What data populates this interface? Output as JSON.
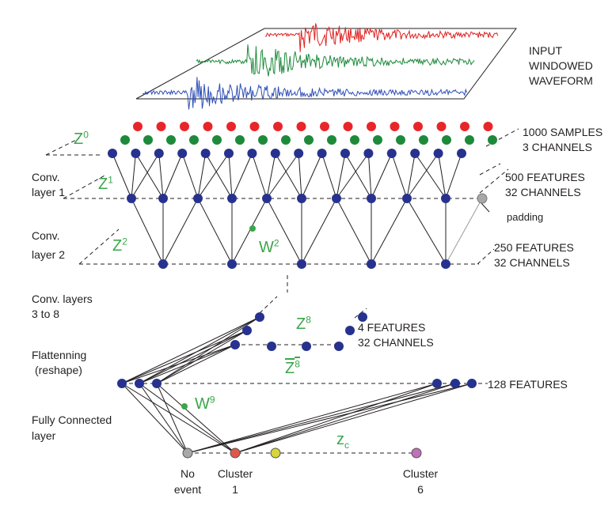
{
  "input": {
    "line1": "INPUT",
    "line2": "WINDOWED",
    "line3": "WAVEFORM",
    "trace_colors": [
      "#e02020",
      "#1d8a3b",
      "#2e4fb8"
    ]
  },
  "samples": {
    "line1": "1000 SAMPLES",
    "line2": "3 CHANNELS"
  },
  "conv1_features": {
    "line1": "500 FEATURES",
    "line2": "32 CHANNELS"
  },
  "conv2_features": {
    "line1": "250 FEATURES",
    "line2": "32 CHANNELS"
  },
  "z8_features": {
    "line1": "4 FEATURES",
    "line2": "32 CHANNELS"
  },
  "flat_features": {
    "text": "128 FEATURES"
  },
  "padding": {
    "text": "padding"
  },
  "layers": {
    "conv1": {
      "line1": "Conv.",
      "line2": "layer 1"
    },
    "conv2": {
      "line1": "Conv.",
      "line2": "layer 2"
    },
    "conv38": {
      "line1": "Conv. layers",
      "line2": "3 to 8"
    },
    "flatten": {
      "line1": "Flattenning",
      "line2": "(reshape)"
    },
    "fc": {
      "line1": "Fully Connected",
      "line2": "layer"
    }
  },
  "symbols": {
    "z0": {
      "base": "Z",
      "sup": "0"
    },
    "z1": {
      "base": "Z",
      "sup": "1"
    },
    "z2": {
      "base": "Z",
      "sup": "2"
    },
    "w2": {
      "base": "W",
      "sup": "2"
    },
    "z8": {
      "base": "Z",
      "sup": "8"
    },
    "z8bar": {
      "base": "Z",
      "sup": "8"
    },
    "w9": {
      "base": "W",
      "sup": "9"
    },
    "zc": {
      "base": "z",
      "sub": "c"
    }
  },
  "outputs": [
    {
      "line1": "No",
      "line2": "event",
      "color": "#a8a8a8"
    },
    {
      "line1": "Cluster",
      "line2": "1",
      "color": "#e0574a"
    },
    {
      "line1": "Cluster",
      "line2": "6",
      "color": "#c070b8"
    }
  ],
  "colors": {
    "node_blue": "#27328f",
    "red": "#e8262a",
    "green": "#1d8a3b",
    "accent_green": "#3aa64a",
    "yellow": "#d6d63a",
    "grey": "#a8a8a8"
  }
}
